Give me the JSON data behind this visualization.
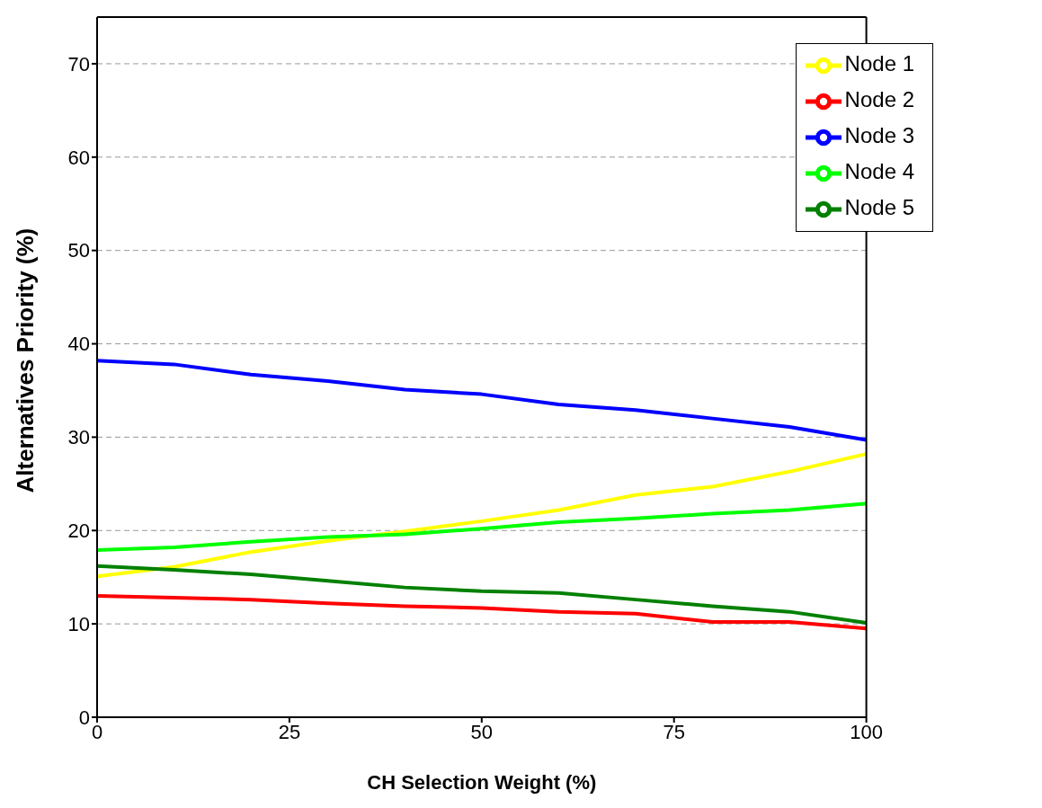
{
  "chart_data": {
    "type": "line",
    "xlabel": "CH Selection Weight (%)",
    "ylabel": "Alternatives Priority (%)",
    "x": [
      0,
      10,
      20,
      30,
      40,
      50,
      60,
      70,
      80,
      90,
      100
    ],
    "series": [
      {
        "name": "Node 1",
        "color": "#ffff00",
        "values": [
          15.1,
          16.1,
          17.7,
          18.9,
          19.9,
          21.0,
          22.2,
          23.8,
          24.7,
          26.3,
          28.2
        ]
      },
      {
        "name": "Node 2",
        "color": "#ff0000",
        "values": [
          13.0,
          12.8,
          12.6,
          12.2,
          11.9,
          11.7,
          11.3,
          11.1,
          10.2,
          10.2,
          9.5
        ]
      },
      {
        "name": "Node 3",
        "color": "#0000ff",
        "values": [
          38.2,
          37.8,
          36.7,
          36.0,
          35.1,
          34.6,
          33.5,
          32.9,
          32.0,
          31.1,
          29.7
        ]
      },
      {
        "name": "Node 4",
        "color": "#00ff00",
        "values": [
          17.9,
          18.2,
          18.8,
          19.3,
          19.6,
          20.2,
          20.9,
          21.3,
          21.8,
          22.2,
          22.9
        ]
      },
      {
        "name": "Node 5",
        "color": "#008000",
        "values": [
          16.2,
          15.8,
          15.3,
          14.6,
          13.9,
          13.5,
          13.3,
          12.6,
          11.9,
          11.3,
          10.1
        ]
      }
    ],
    "xlim": [
      0,
      100
    ],
    "xticks": [
      0,
      25,
      50,
      75,
      100
    ],
    "ylim": [
      0,
      75
    ],
    "yticks": [
      0,
      10,
      20,
      30,
      40,
      50,
      60,
      70
    ],
    "grid": "y",
    "legend": "top right",
    "marker": "none",
    "line_style": "solid"
  }
}
